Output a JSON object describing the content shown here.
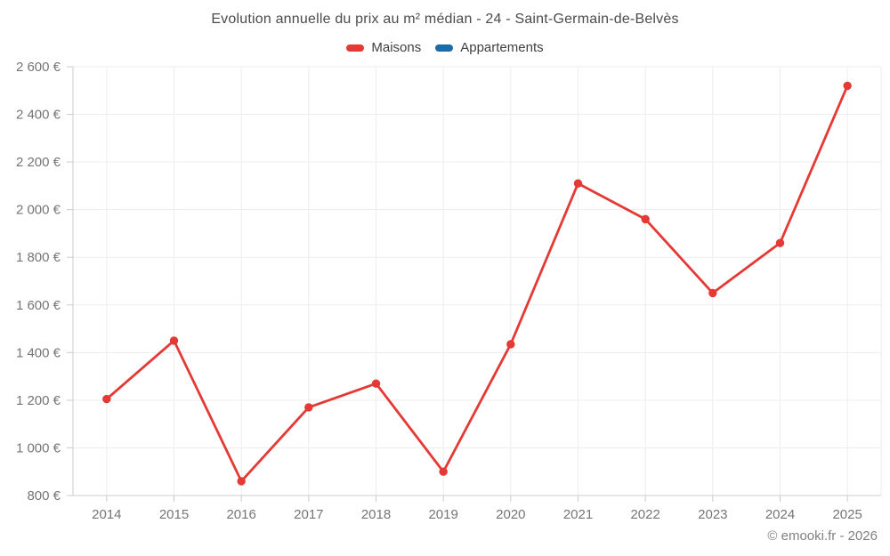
{
  "title": "Evolution annuelle du prix au m² médian - 24 - Saint-Germain-de-Belvès",
  "legend": [
    {
      "label": "Maisons",
      "color": "#e53935"
    },
    {
      "label": "Appartements",
      "color": "#1b6ca8"
    }
  ],
  "footer": {
    "copyright": "© emooki.fr - 2026"
  },
  "colors": {
    "grid": "#ededed",
    "axis": "#cccccc",
    "tick_text": "#757575",
    "title_text": "#4b4b4b"
  },
  "chart_data": {
    "type": "line",
    "title": "Evolution annuelle du prix au m² médian - 24 - Saint-Germain-de-Belvès",
    "x": [
      "2014",
      "2015",
      "2016",
      "2017",
      "2018",
      "2019",
      "2020",
      "2021",
      "2022",
      "2023",
      "2024",
      "2025"
    ],
    "series": [
      {
        "name": "Maisons",
        "color": "#e53935",
        "values": [
          1205,
          1450,
          860,
          1170,
          1270,
          900,
          1435,
          2110,
          1960,
          1650,
          1860,
          2520
        ]
      },
      {
        "name": "Appartements",
        "color": "#1b6ca8",
        "values": []
      }
    ],
    "xlabel": "",
    "ylabel": "",
    "ylim": [
      800,
      2600
    ],
    "ytick_step": 200,
    "ytick_suffix": " €",
    "grid": true,
    "legend_position": "top"
  }
}
